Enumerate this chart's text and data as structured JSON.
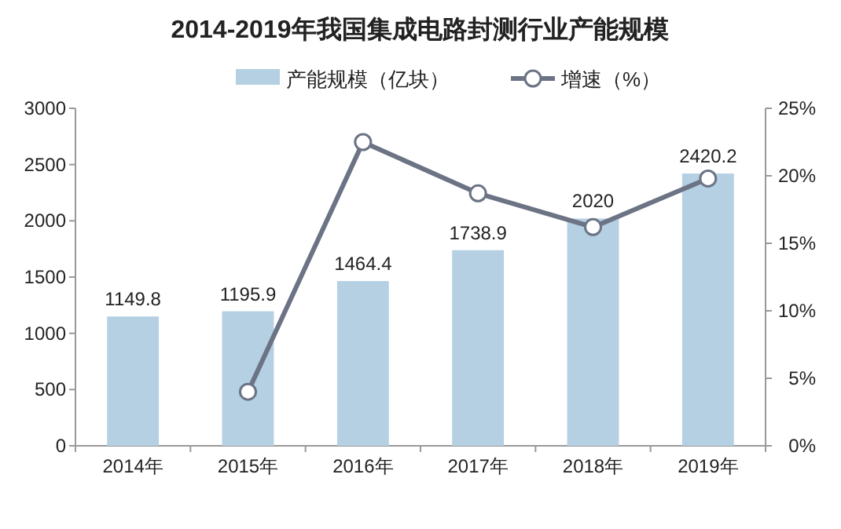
{
  "chart_data": {
    "type": "bar",
    "title": "2014-2019年我国集成电路封测行业产能规模",
    "categories": [
      "2014年",
      "2015年",
      "2016年",
      "2017年",
      "2018年",
      "2019年"
    ],
    "series": [
      {
        "name": "产能规模（亿块）",
        "color": "#b4d0e2",
        "values": [
          1149.8,
          1195.9,
          1464.4,
          1738.9,
          2020,
          2420.2
        ],
        "value_labels": [
          "1149.8",
          "1195.9",
          "1464.4",
          "1738.9",
          "2020",
          "2420.2"
        ]
      },
      {
        "name": "增速（%）",
        "type": "line",
        "axis": "y2",
        "color": "#6b7385",
        "marker": "circle",
        "values": [
          null,
          4.0,
          22.5,
          18.7,
          16.2,
          19.8
        ]
      }
    ],
    "ylim": [
      0,
      3000
    ],
    "yticks": [
      0,
      500,
      1000,
      1500,
      2000,
      2500,
      3000
    ],
    "y2lim": [
      0,
      25
    ],
    "y2ticks": [
      {
        "value": 0,
        "label": "0%"
      },
      {
        "value": 5,
        "label": "5%"
      },
      {
        "value": 10,
        "label": "10%"
      },
      {
        "value": 15,
        "label": "15%"
      },
      {
        "value": 20,
        "label": "20%"
      },
      {
        "value": 25,
        "label": "25%"
      }
    ],
    "grid": false,
    "legend": "top"
  }
}
